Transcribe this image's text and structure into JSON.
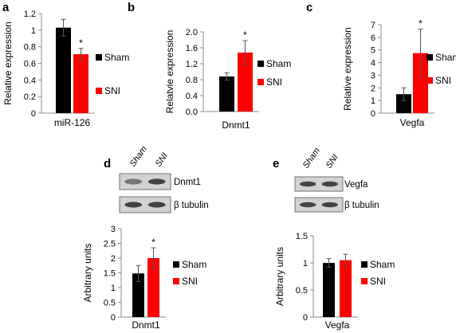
{
  "colors": {
    "sham": "#000000",
    "sni": "#ff0000",
    "axis": "#888888",
    "blot_bg": "#d2d2d2",
    "band": "#2a2a2a"
  },
  "chart_data": [
    {
      "panel": "a",
      "type": "bar",
      "categories": [
        "miR-126"
      ],
      "series": [
        {
          "name": "Sham",
          "values": [
            1.03
          ],
          "errors": [
            0.1
          ]
        },
        {
          "name": "SNI",
          "values": [
            0.71
          ],
          "errors": [
            0.07
          ]
        }
      ],
      "significance": [
        "",
        "*"
      ],
      "xlabel": "",
      "ylabel": "Relative expression",
      "ylim": [
        0,
        1.2
      ],
      "yticks": [
        "0",
        "0.2",
        "0.4",
        "0.6",
        "0.8",
        "1",
        "1.2"
      ],
      "grid": false,
      "legend": "right"
    },
    {
      "panel": "b",
      "type": "bar",
      "categories": [
        "Dnmt1"
      ],
      "series": [
        {
          "name": "Sham",
          "values": [
            0.88
          ],
          "errors": [
            0.09
          ]
        },
        {
          "name": "SNI",
          "values": [
            1.48
          ],
          "errors": [
            0.3
          ]
        }
      ],
      "significance": [
        "",
        "*"
      ],
      "xlabel": "",
      "ylabel": "Relatvie expression",
      "ylim": [
        0,
        2.0
      ],
      "yticks": [
        "0.0",
        "0.4",
        "0.8",
        "1.2",
        "1.6",
        "2.0"
      ],
      "grid": false,
      "legend": "right"
    },
    {
      "panel": "c",
      "type": "bar",
      "categories": [
        "Vegfa"
      ],
      "series": [
        {
          "name": "Sham",
          "values": [
            1.5
          ],
          "errors": [
            0.5
          ]
        },
        {
          "name": "SNI",
          "values": [
            4.75
          ],
          "errors": [
            1.9
          ]
        }
      ],
      "significance": [
        "",
        "*"
      ],
      "xlabel": "",
      "ylabel": "Relative expression",
      "ylim": [
        0,
        7
      ],
      "yticks": [
        "0",
        "1",
        "2",
        "3",
        "4",
        "5",
        "6",
        "7"
      ],
      "grid": false,
      "legend": "right"
    },
    {
      "panel": "d",
      "type": "bar",
      "categories": [
        "Dnmt1"
      ],
      "series": [
        {
          "name": "Sham",
          "values": [
            1.48
          ],
          "errors": [
            0.27
          ]
        },
        {
          "name": "SNI",
          "values": [
            2.0
          ],
          "errors": [
            0.35
          ]
        }
      ],
      "significance": [
        "",
        "*"
      ],
      "xlabel": "",
      "ylabel": "Arbitrary units",
      "ylim": [
        0,
        3
      ],
      "yticks": [
        "0",
        "0.5",
        "1",
        "1.5",
        "2",
        "2.5",
        "3"
      ],
      "grid": false,
      "legend": "right",
      "blot": {
        "lanes": [
          "Sham",
          "SNI"
        ],
        "rows": [
          "Dnmt1",
          "β tubulin"
        ]
      }
    },
    {
      "panel": "e",
      "type": "bar",
      "categories": [
        "Vegfa"
      ],
      "series": [
        {
          "name": "Sham",
          "values": [
            1.0
          ],
          "errors": [
            0.08
          ]
        },
        {
          "name": "SNI",
          "values": [
            1.05
          ],
          "errors": [
            0.11
          ]
        }
      ],
      "significance": [
        "",
        ""
      ],
      "xlabel": "",
      "ylabel": "Arbitrary units",
      "ylim": [
        0,
        1.5
      ],
      "yticks": [
        "0",
        "0.5",
        "1",
        "1.5"
      ],
      "grid": false,
      "legend": "right",
      "blot": {
        "lanes": [
          "Sham",
          "SNI"
        ],
        "rows": [
          "Vegfa",
          "β tubulin"
        ]
      }
    }
  ]
}
